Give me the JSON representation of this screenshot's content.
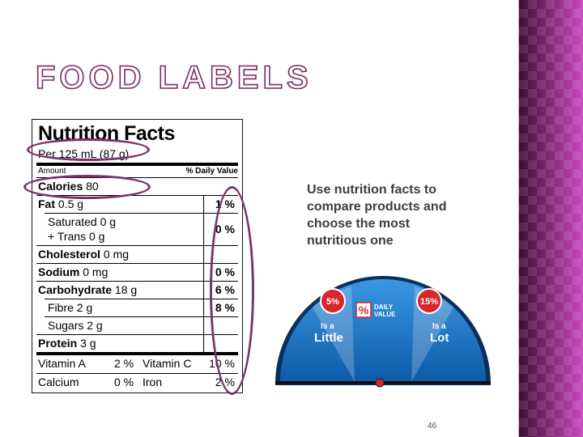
{
  "slide": {
    "title": "FOOD LABELS",
    "body_text": "Use nutrition facts to compare products and choose the most nutritious one",
    "page_number": "46"
  },
  "nutrition_facts": {
    "title": "Nutrition Facts",
    "serving": "Per 125 mL (87 g)",
    "amount_label": "Amount",
    "dv_label": "% Daily Value",
    "calories_label": "Calories",
    "calories_value": "80",
    "fat_label": "Fat",
    "fat_value": "0.5 g",
    "fat_pct": "1 %",
    "saturated_label": "Saturated 0 g",
    "trans_label": "+ Trans 0 g",
    "sat_trans_pct": "0 %",
    "cholesterol_label": "Cholesterol",
    "cholesterol_value": "0 mg",
    "sodium_label": "Sodium",
    "sodium_value": "0 mg",
    "sodium_pct": "0 %",
    "carb_label": "Carbohydrate",
    "carb_value": "18 g",
    "carb_pct": "6 %",
    "fibre_label": "Fibre 2 g",
    "fibre_pct": "8 %",
    "sugars_label": "Sugars 2 g",
    "protein_label": "Protein",
    "protein_value": "3 g",
    "vit_a_label": "Vitamin A",
    "vit_a_pct": "2 %",
    "vit_c_label": "Vitamin C",
    "vit_c_pct": "10 %",
    "calcium_label": "Calcium",
    "calcium_pct": "0 %",
    "iron_label": "Iron",
    "iron_pct": "2 %"
  },
  "gauge": {
    "left_badge": "5%",
    "right_badge": "15%",
    "left_small": "Is a",
    "left_big": "Little",
    "right_small": "Is a",
    "right_big": "Lot",
    "logo_symbol": "%",
    "logo_line1": "DAILY",
    "logo_line2": "VALUE",
    "colors": {
      "dome": "#1f7fd0",
      "badge": "#d8262e",
      "needle_dot": "#d8262e",
      "ring": "#7a3565"
    }
  }
}
